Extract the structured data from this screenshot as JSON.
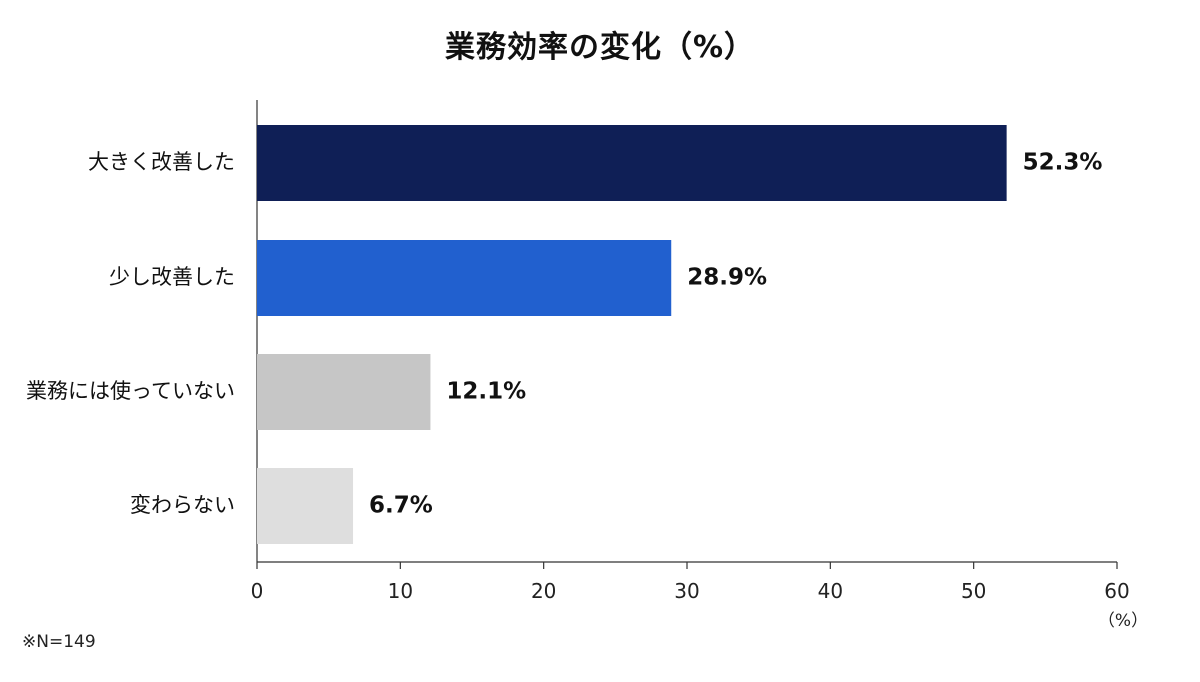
{
  "chart_data": {
    "type": "bar",
    "orientation": "horizontal",
    "title": "業務効率の変化（%）",
    "categories": [
      "大きく改善した",
      "少し改善した",
      "業務には使っていない",
      "変わらない"
    ],
    "values": [
      52.3,
      28.9,
      12.1,
      6.7
    ],
    "value_labels": [
      "52.3%",
      "28.9%",
      "12.1%",
      "6.7%"
    ],
    "colors": [
      "#0f1f56",
      "#2160cf",
      "#c6c6c6",
      "#dedede"
    ],
    "xlim": [
      0,
      60
    ],
    "xticks": [
      0,
      10,
      20,
      30,
      40,
      50,
      60
    ],
    "x_unit_label": "（%）",
    "grid": false,
    "legend": "none"
  },
  "footnote": "※N=149"
}
